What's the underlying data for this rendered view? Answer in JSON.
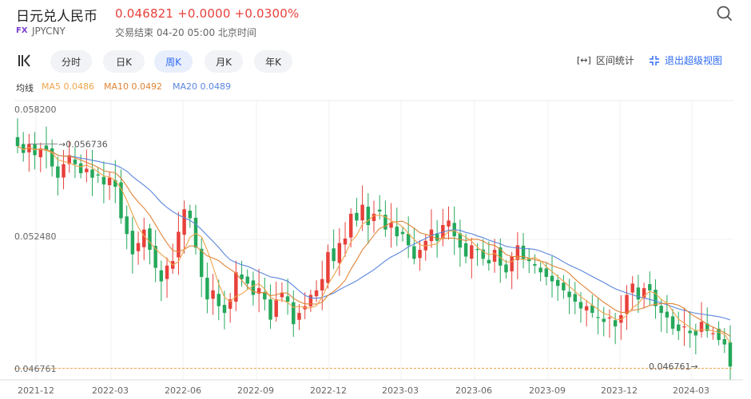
{
  "header": {
    "title": "日元兑人民币",
    "price_text": "0.046821 +0.0000 +0.0300%",
    "fx_badge": "FX",
    "code": "JPYCNY",
    "status": "交易结束 04-20 05:00 北京时间"
  },
  "toolbar": {
    "tabs": [
      {
        "label": "分时",
        "active": false
      },
      {
        "label": "日K",
        "active": false
      },
      {
        "label": "周K",
        "active": true
      },
      {
        "label": "月K",
        "active": false
      },
      {
        "label": "年K",
        "active": false
      }
    ],
    "range_label": "区间统计",
    "exit_label": "退出超级视图"
  },
  "ma": {
    "label": "均线",
    "ma5": "MA5 0.0486",
    "ma10": "MA10 0.0492",
    "ma20": "MA20 0.0489"
  },
  "colors": {
    "up": "#e8403a",
    "down": "#25a85b",
    "ma5": "#f0a44b",
    "ma10": "#e08436",
    "ma20": "#5b86dc",
    "accent": "#2f6cf3",
    "fx_badge": "#7a3fd0"
  },
  "chart_data": {
    "type": "candlestick",
    "price_labels": [
      "0.058200",
      "0.052480",
      "0.046761"
    ],
    "x_labels": [
      "2021-12",
      "2022-03",
      "2022-06",
      "2022-09",
      "2022-12",
      "2023-03",
      "2023-06",
      "2023-09",
      "2023-12",
      "2024-03"
    ],
    "high_marker": "0.056736",
    "low_marker": "0.046761",
    "ylim": [
      0.046761,
      0.0582
    ],
    "grid": true,
    "closes": [
      0.0566,
      0.0563,
      0.0567,
      0.0562,
      0.0565,
      0.0564,
      0.0557,
      0.0552,
      0.0558,
      0.0562,
      0.0558,
      0.0554,
      0.0556,
      0.0552,
      0.0553,
      0.0549,
      0.0552,
      0.0548,
      0.0534,
      0.0527,
      0.0518,
      0.0523,
      0.0529,
      0.052,
      0.0512,
      0.0506,
      0.0513,
      0.0515,
      0.0528,
      0.0538,
      0.0534,
      0.0521,
      0.0508,
      0.0498,
      0.0502,
      0.0495,
      0.0492,
      0.0498,
      0.051,
      0.0507,
      0.0505,
      0.05,
      0.0503,
      0.0498,
      0.0489,
      0.0498,
      0.0501,
      0.0497,
      0.0487,
      0.0492,
      0.0495,
      0.05,
      0.0502,
      0.0507,
      0.0519,
      0.0515,
      0.0523,
      0.0525,
      0.0536,
      0.0533,
      0.054,
      0.0531,
      0.0536,
      0.0537,
      0.0529,
      0.0532,
      0.0526,
      0.0527,
      0.0522,
      0.0516,
      0.052,
      0.0524,
      0.0529,
      0.0524,
      0.0531,
      0.0533,
      0.0526,
      0.0521,
      0.0517,
      0.0522,
      0.052,
      0.0516,
      0.0514,
      0.052,
      0.0513,
      0.051,
      0.0517,
      0.0522,
      0.0516,
      0.0515,
      0.0513,
      0.051,
      0.0508,
      0.0506,
      0.0504,
      0.0502,
      0.0499,
      0.0497,
      0.0494,
      0.0495,
      0.0492,
      0.049,
      0.0488,
      0.049,
      0.0486,
      0.0491,
      0.05,
      0.0505,
      0.0498,
      0.0503,
      0.0502,
      0.0495,
      0.0492,
      0.049,
      0.0485,
      0.0484,
      0.0486,
      0.0483,
      0.0482,
      0.0488,
      0.0484,
      0.0483,
      0.048,
      0.0478,
      0.04682
    ]
  }
}
